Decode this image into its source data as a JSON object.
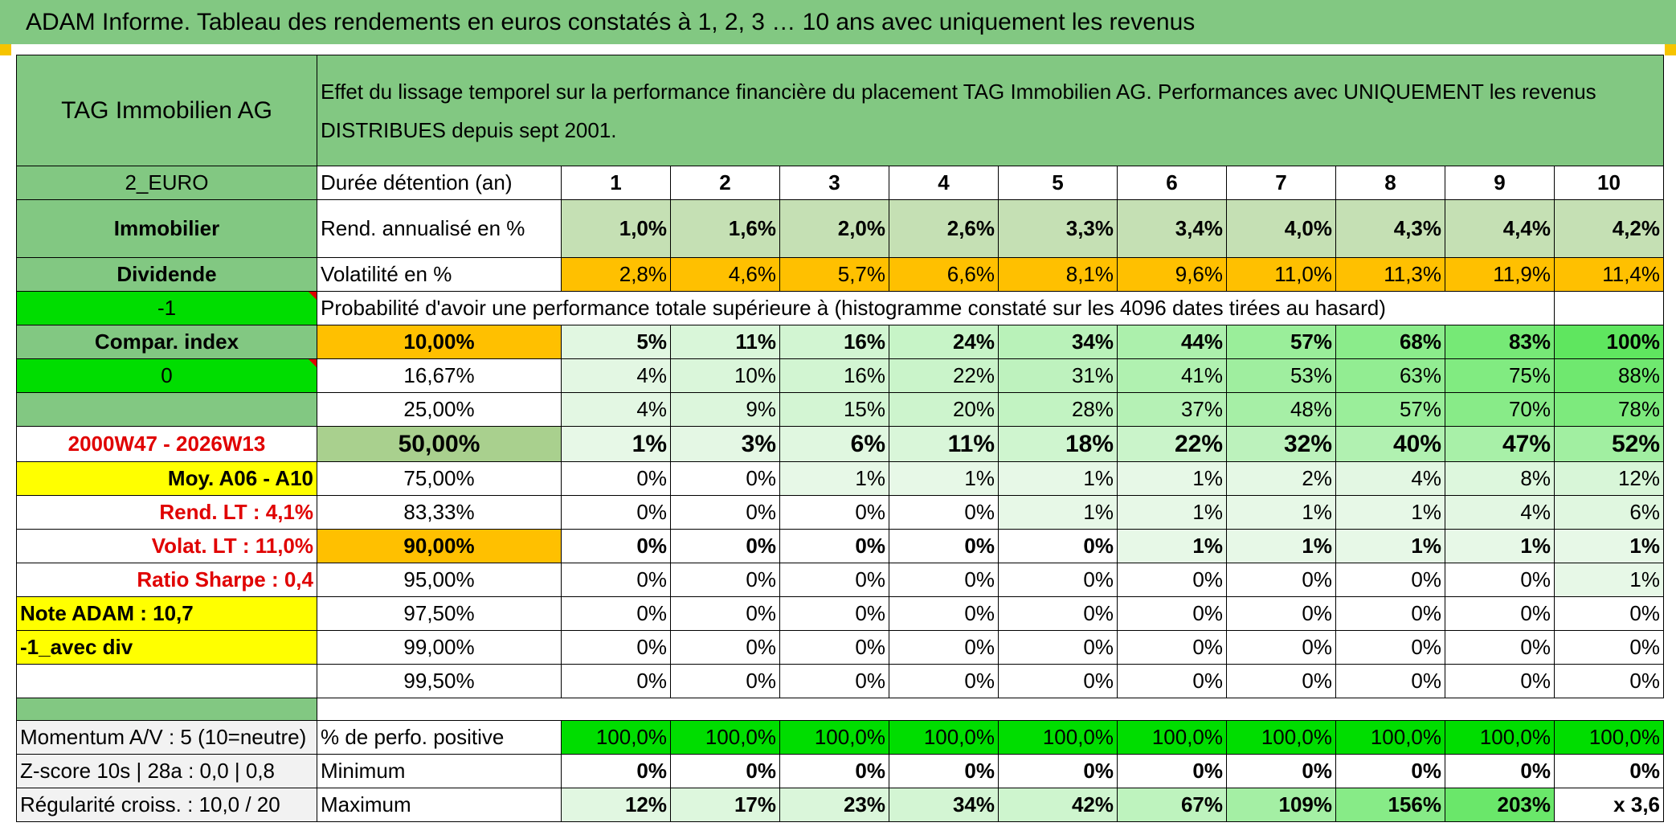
{
  "banner": "ADAM Informe. Tableau des rendements en euros constatés à 1, 2, 3 … 10 ans avec uniquement les revenus",
  "header": {
    "company": "TAG Immobilien AG",
    "description": "Effet du lissage temporel sur la performance financière du placement TAG Immobilien AG. Performances avec UNIQUEMENT les revenus DISTRIBUES depuis sept 2001."
  },
  "left": {
    "currency": "2_EURO",
    "sector": "Immobilier",
    "income": "Dividende",
    "value_neg1": "-1",
    "compar_label": "Compar. index",
    "value_zero": "0",
    "period": "2000W47 - 2026W13",
    "avg": "Moy. A06 - A10",
    "rend_lt": "Rend. LT :    4,1%",
    "volat_lt": "Volat. LT :    11,0%",
    "sharpe": "Ratio Sharpe :    0,4",
    "note": "Note ADAM : 10,7",
    "avec_div": "-1_avec div",
    "momentum": "Momentum A/V : 5 (10=neutre)",
    "zscore": "Z-score 10s | 28a : 0,0 | 0,8",
    "regularite": "Régularité croiss. : 10,0 / 20"
  },
  "durations_label": "Durée détention (an)",
  "durations": [
    "1",
    "2",
    "3",
    "4",
    "5",
    "6",
    "7",
    "8",
    "9",
    "10"
  ],
  "rend_label": "Rend. annualisé en %",
  "rend": [
    "1,0%",
    "1,6%",
    "2,0%",
    "2,6%",
    "3,3%",
    "3,4%",
    "4,0%",
    "4,3%",
    "4,4%",
    "4,2%"
  ],
  "vol_label": "Volatilité en %",
  "vol": [
    "2,8%",
    "4,6%",
    "5,7%",
    "6,6%",
    "8,1%",
    "9,6%",
    "11,0%",
    "11,3%",
    "11,9%",
    "11,4%"
  ],
  "prob_title": "Probabilité d'avoir une performance totale supérieure à (histogramme constaté sur les 4096 dates tirées au hasard)",
  "prob_rows": [
    {
      "threshold": "10,00%",
      "values": [
        "5%",
        "11%",
        "16%",
        "24%",
        "34%",
        "44%",
        "57%",
        "68%",
        "83%",
        "100%"
      ]
    },
    {
      "threshold": "16,67%",
      "values": [
        "4%",
        "10%",
        "16%",
        "22%",
        "31%",
        "41%",
        "53%",
        "63%",
        "75%",
        "88%"
      ]
    },
    {
      "threshold": "25,00%",
      "values": [
        "4%",
        "9%",
        "15%",
        "20%",
        "28%",
        "37%",
        "48%",
        "57%",
        "70%",
        "78%"
      ]
    },
    {
      "threshold": "50,00%",
      "values": [
        "1%",
        "3%",
        "6%",
        "11%",
        "18%",
        "22%",
        "32%",
        "40%",
        "47%",
        "52%"
      ]
    },
    {
      "threshold": "75,00%",
      "values": [
        "0%",
        "0%",
        "1%",
        "1%",
        "1%",
        "1%",
        "2%",
        "4%",
        "8%",
        "12%"
      ]
    },
    {
      "threshold": "83,33%",
      "values": [
        "0%",
        "0%",
        "0%",
        "0%",
        "1%",
        "1%",
        "1%",
        "1%",
        "4%",
        "6%"
      ]
    },
    {
      "threshold": "90,00%",
      "values": [
        "0%",
        "0%",
        "0%",
        "0%",
        "0%",
        "1%",
        "1%",
        "1%",
        "1%",
        "1%"
      ]
    },
    {
      "threshold": "95,00%",
      "values": [
        "0%",
        "0%",
        "0%",
        "0%",
        "0%",
        "0%",
        "0%",
        "0%",
        "0%",
        "1%"
      ]
    },
    {
      "threshold": "97,50%",
      "values": [
        "0%",
        "0%",
        "0%",
        "0%",
        "0%",
        "0%",
        "0%",
        "0%",
        "0%",
        "0%"
      ]
    },
    {
      "threshold": "99,00%",
      "values": [
        "0%",
        "0%",
        "0%",
        "0%",
        "0%",
        "0%",
        "0%",
        "0%",
        "0%",
        "0%"
      ]
    },
    {
      "threshold": "99,50%",
      "values": [
        "0%",
        "0%",
        "0%",
        "0%",
        "0%",
        "0%",
        "0%",
        "0%",
        "0%",
        "0%"
      ]
    }
  ],
  "pos_label": "% de perfo. positive",
  "pos": [
    "100,0%",
    "100,0%",
    "100,0%",
    "100,0%",
    "100,0%",
    "100,0%",
    "100,0%",
    "100,0%",
    "100,0%",
    "100,0%"
  ],
  "min_label": "Minimum",
  "min": [
    "0%",
    "0%",
    "0%",
    "0%",
    "0%",
    "0%",
    "0%",
    "0%",
    "0%",
    "0%"
  ],
  "max_label": "Maximum",
  "max": [
    "12%",
    "17%",
    "23%",
    "34%",
    "42%",
    "67%",
    "109%",
    "156%",
    "203%",
    "x 3,6"
  ]
}
